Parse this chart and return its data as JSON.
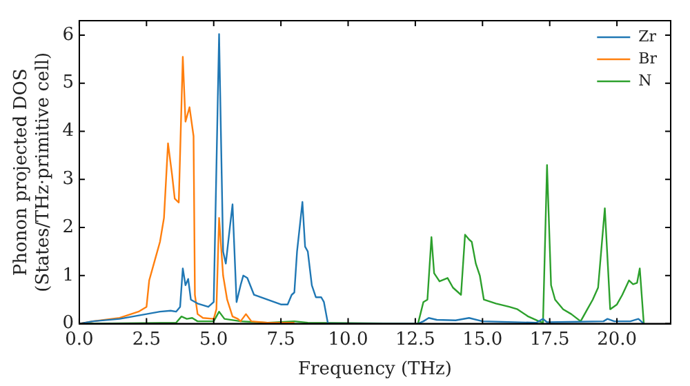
{
  "chart_data": {
    "type": "line",
    "xlabel": "Frequency (THz)",
    "ylabel": "Phonon projected DOS\n(States/THz·primitive cell)",
    "xlim": [
      0,
      22
    ],
    "ylim": [
      0,
      6.3
    ],
    "xticks": [
      {
        "value": 0,
        "label": "0.0"
      },
      {
        "value": 2.5,
        "label": "2.5"
      },
      {
        "value": 5,
        "label": "5.0"
      },
      {
        "value": 7.5,
        "label": "7.5"
      },
      {
        "value": 10,
        "label": "10.0"
      },
      {
        "value": 12.5,
        "label": "12.5"
      },
      {
        "value": 15,
        "label": "15.0"
      },
      {
        "value": 17.5,
        "label": "17.5"
      },
      {
        "value": 20,
        "label": "20.0"
      }
    ],
    "yticks": [
      0,
      1,
      2,
      3,
      4,
      5,
      6
    ],
    "grid": false,
    "legend": "top right",
    "marker": "none",
    "line_style": "solid",
    "series": [
      {
        "name": "Zr",
        "color": "#1f77b4",
        "x": [
          0,
          0.5,
          1.5,
          2.5,
          3,
          3.4,
          3.6,
          3.75,
          3.85,
          3.95,
          4.05,
          4.15,
          4.4,
          4.8,
          5.0,
          5.2,
          5.35,
          5.45,
          5.6,
          5.7,
          5.85,
          6.0,
          6.1,
          6.25,
          6.5,
          7.0,
          7.5,
          7.75,
          7.9,
          8.0,
          8.1,
          8.3,
          8.4,
          8.5,
          8.65,
          8.8,
          9.0,
          9.1,
          9.25,
          12.6,
          12.8,
          13.0,
          13.3,
          14,
          14.5,
          15,
          17,
          17.25,
          17.4,
          19.5,
          19.65,
          19.9,
          20.5,
          20.8,
          21.0
        ],
        "values": [
          0,
          0.05,
          0.1,
          0.2,
          0.25,
          0.27,
          0.25,
          0.35,
          1.15,
          0.8,
          0.93,
          0.5,
          0.42,
          0.35,
          0.45,
          6.02,
          1.5,
          1.25,
          2.0,
          2.48,
          0.45,
          0.8,
          1.0,
          0.95,
          0.6,
          0.5,
          0.4,
          0.4,
          0.6,
          0.65,
          1.5,
          2.53,
          1.6,
          1.5,
          0.8,
          0.55,
          0.55,
          0.45,
          0,
          0,
          0.05,
          0.12,
          0.08,
          0.07,
          0.12,
          0.05,
          0.02,
          0.1,
          0.03,
          0.05,
          0.1,
          0.05,
          0.05,
          0.1,
          0
        ]
      },
      {
        "name": "Br",
        "color": "#ff7f0e",
        "x": [
          0,
          0.5,
          1.5,
          2.2,
          2.5,
          2.6,
          2.8,
          3.0,
          3.15,
          3.3,
          3.45,
          3.55,
          3.7,
          3.85,
          3.95,
          4.1,
          4.25,
          4.3,
          4.4,
          4.6,
          5.0,
          5.1,
          5.2,
          5.35,
          5.5,
          5.7,
          5.9,
          6.0,
          6.2,
          6.4,
          7,
          8
        ],
        "values": [
          0,
          0.05,
          0.12,
          0.25,
          0.35,
          0.9,
          1.3,
          1.7,
          2.2,
          3.75,
          3.1,
          2.6,
          2.52,
          5.55,
          4.2,
          4.5,
          3.9,
          0.6,
          0.2,
          0.12,
          0.1,
          0.3,
          2.2,
          1.0,
          0.5,
          0.15,
          0.1,
          0.05,
          0.2,
          0.05,
          0.02,
          0.02
        ]
      },
      {
        "name": "N",
        "color": "#2ca02c",
        "x": [
          0,
          3.6,
          3.8,
          4.0,
          4.2,
          4.4,
          5.0,
          5.2,
          5.4,
          6,
          7,
          8,
          8.5,
          12.6,
          12.8,
          12.95,
          13.1,
          13.2,
          13.4,
          13.7,
          13.9,
          14.2,
          14.35,
          14.5,
          14.6,
          14.75,
          14.9,
          15.05,
          15.5,
          16,
          16.3,
          16.7,
          17.1,
          17.25,
          17.4,
          17.55,
          17.7,
          18,
          18.3,
          18.65,
          18.9,
          19.1,
          19.3,
          19.55,
          19.75,
          20.0,
          20.2,
          20.45,
          20.6,
          20.75,
          20.85,
          21.0
        ],
        "values": [
          0,
          0.02,
          0.15,
          0.1,
          0.12,
          0.05,
          0.05,
          0.25,
          0.1,
          0.05,
          0.02,
          0.05,
          0.02,
          0,
          0.45,
          0.5,
          1.8,
          1.05,
          0.88,
          0.95,
          0.75,
          0.6,
          1.85,
          1.75,
          1.7,
          1.25,
          1.0,
          0.5,
          0.42,
          0.35,
          0.3,
          0.15,
          0.05,
          0.02,
          3.3,
          0.8,
          0.5,
          0.3,
          0.2,
          0.05,
          0.3,
          0.5,
          0.75,
          2.4,
          0.3,
          0.4,
          0.6,
          0.9,
          0.82,
          0.85,
          1.15,
          0
        ]
      }
    ]
  }
}
